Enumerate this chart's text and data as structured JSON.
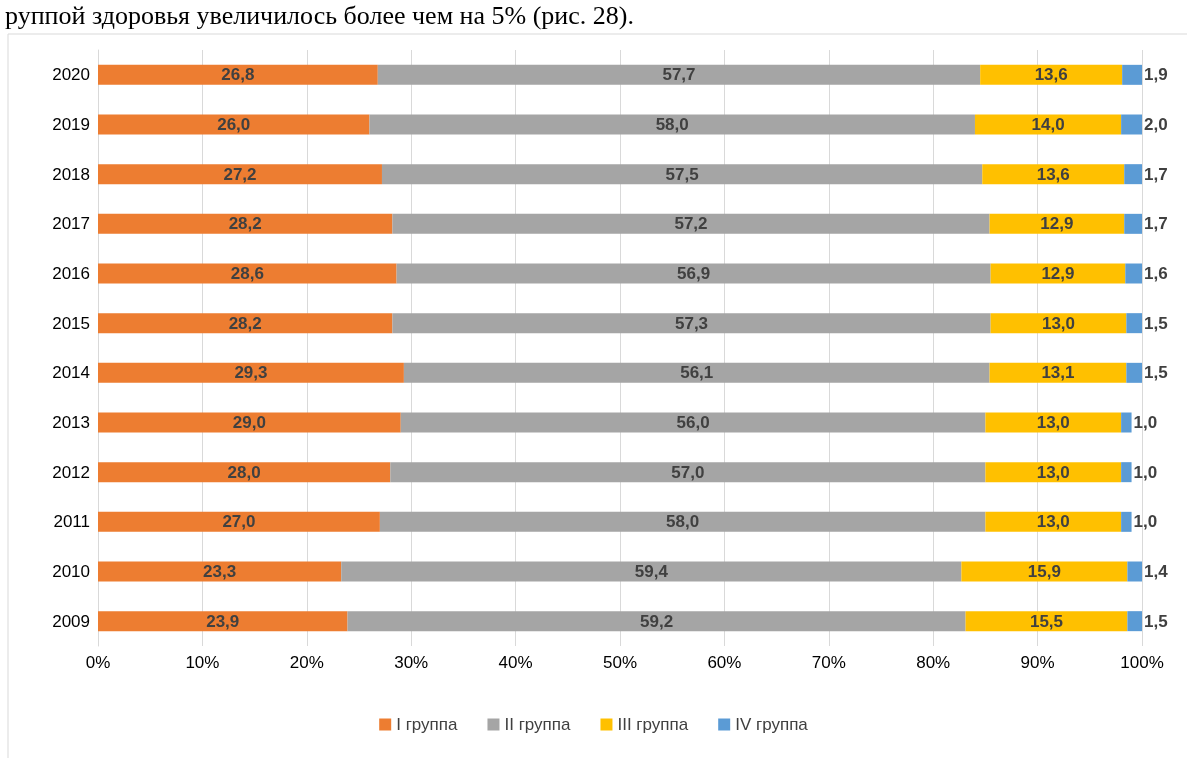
{
  "chart_data": {
    "type": "bar",
    "orientation": "horizontal",
    "stacked": true,
    "categories": [
      "2020",
      "2019",
      "2018",
      "2017",
      "2016",
      "2015",
      "2014",
      "2013",
      "2012",
      "2011",
      "2010",
      "2009"
    ],
    "series": [
      {
        "name": "I группа",
        "color": "#ed7d31",
        "values": [
          26.8,
          26.0,
          27.2,
          28.2,
          28.6,
          28.2,
          29.3,
          29.0,
          28.0,
          27.0,
          23.3,
          23.9
        ],
        "value_labels": [
          "26,8",
          "26,0",
          "27,2",
          "28,2",
          "28,6",
          "28,2",
          "29,3",
          "29,0",
          "28,0",
          "27,0",
          "23,3",
          "23,9"
        ]
      },
      {
        "name": "II группа",
        "color": "#a5a5a5",
        "values": [
          57.7,
          58.0,
          57.5,
          57.2,
          56.9,
          57.3,
          56.1,
          56.0,
          57.0,
          58.0,
          59.4,
          59.2
        ],
        "value_labels": [
          "57,7",
          "58,0",
          "57,5",
          "57,2",
          "56,9",
          "57,3",
          "56,1",
          "56,0",
          "57,0",
          "58,0",
          "59,4",
          "59,2"
        ]
      },
      {
        "name": "III группа",
        "color": "#ffc000",
        "values": [
          13.6,
          14.0,
          13.6,
          12.9,
          12.9,
          13.0,
          13.1,
          13.0,
          13.0,
          13.0,
          15.9,
          15.5
        ],
        "value_labels": [
          "13,6",
          "14,0",
          "13,6",
          "12,9",
          "12,9",
          "13,0",
          "13,1",
          "13,0",
          "13,0",
          "13,0",
          "15,9",
          "15,5"
        ]
      },
      {
        "name": "IV группа",
        "color": "#5b9bd5",
        "values": [
          1.9,
          2.0,
          1.7,
          1.7,
          1.6,
          1.5,
          1.5,
          1.0,
          1.0,
          1.0,
          1.4,
          1.5
        ],
        "value_labels": [
          "1,9",
          "2,0",
          "1,7",
          "1,7",
          "1,6",
          "1,5",
          "1,5",
          "1,0",
          "1,0",
          "1,0",
          "1,4",
          "1,5"
        ]
      }
    ],
    "xlim": [
      0,
      100
    ],
    "xticks": [
      {
        "value": 0,
        "label": "0%"
      },
      {
        "value": 10,
        "label": "10%"
      },
      {
        "value": 20,
        "label": "20%"
      },
      {
        "value": 30,
        "label": "30%"
      },
      {
        "value": 40,
        "label": "40%"
      },
      {
        "value": 50,
        "label": "50%"
      },
      {
        "value": 60,
        "label": "60%"
      },
      {
        "value": 70,
        "label": "70%"
      },
      {
        "value": 80,
        "label": "80%"
      },
      {
        "value": 90,
        "label": "90%"
      },
      {
        "value": 100,
        "label": "100%"
      }
    ],
    "grid": "x",
    "legend": "bottom",
    "annotations": [
      "руппой здоровья увеличилось более чем на 5% (рис. 28)."
    ]
  }
}
